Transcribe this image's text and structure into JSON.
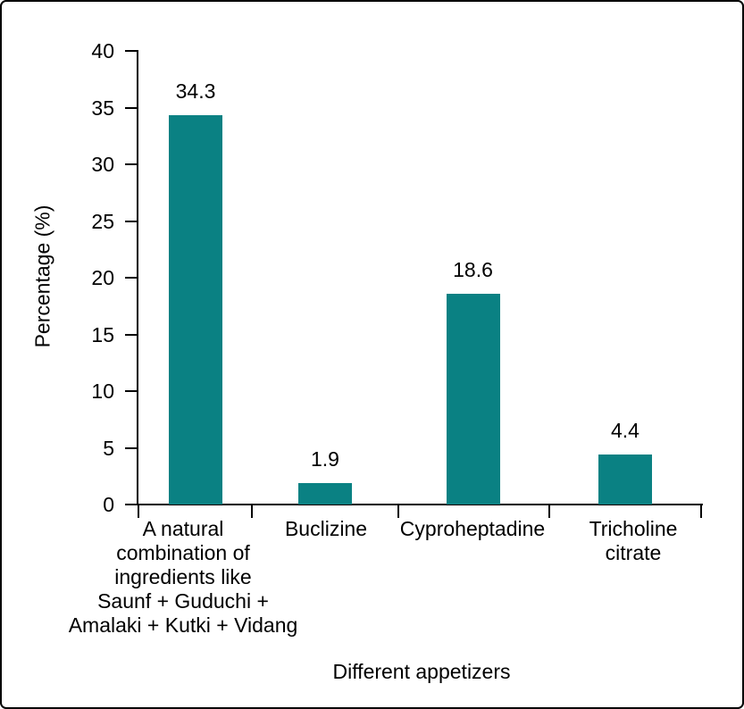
{
  "chart_data": {
    "type": "bar",
    "title": "",
    "xlabel": "Different appetizers",
    "ylabel": "Percentage (%)",
    "ylim": [
      0,
      40
    ],
    "ytick_interval": 5,
    "yticks": [
      0,
      5,
      10,
      15,
      20,
      25,
      30,
      35,
      40
    ],
    "ytick_labels": [
      "0",
      "5",
      "10",
      "15",
      "20",
      "25",
      "30",
      "35",
      "40"
    ],
    "grid": false,
    "legend_position": "none",
    "bar_color": "#0a8183",
    "text_color": "#000000",
    "categories": [
      "A natural combination of ingredients like Saunf + Guduchi + Amalaki + Kutki + Vidang",
      "Buclizine",
      "Cyproheptadine",
      "Tricholine citrate"
    ],
    "category_label_lines": [
      [
        "A natural",
        "combination of",
        "ingredients like",
        "Saunf + Guduchi +",
        "Amalaki + Kutki + Vidang"
      ],
      [
        "Buclizine"
      ],
      [
        "Cyproheptadine"
      ],
      [
        "Tricholine",
        "citrate"
      ]
    ],
    "values": [
      34.3,
      1.9,
      18.6,
      4.4
    ],
    "value_labels": [
      "34.3",
      "1.9",
      "18.6",
      "4.4"
    ]
  }
}
